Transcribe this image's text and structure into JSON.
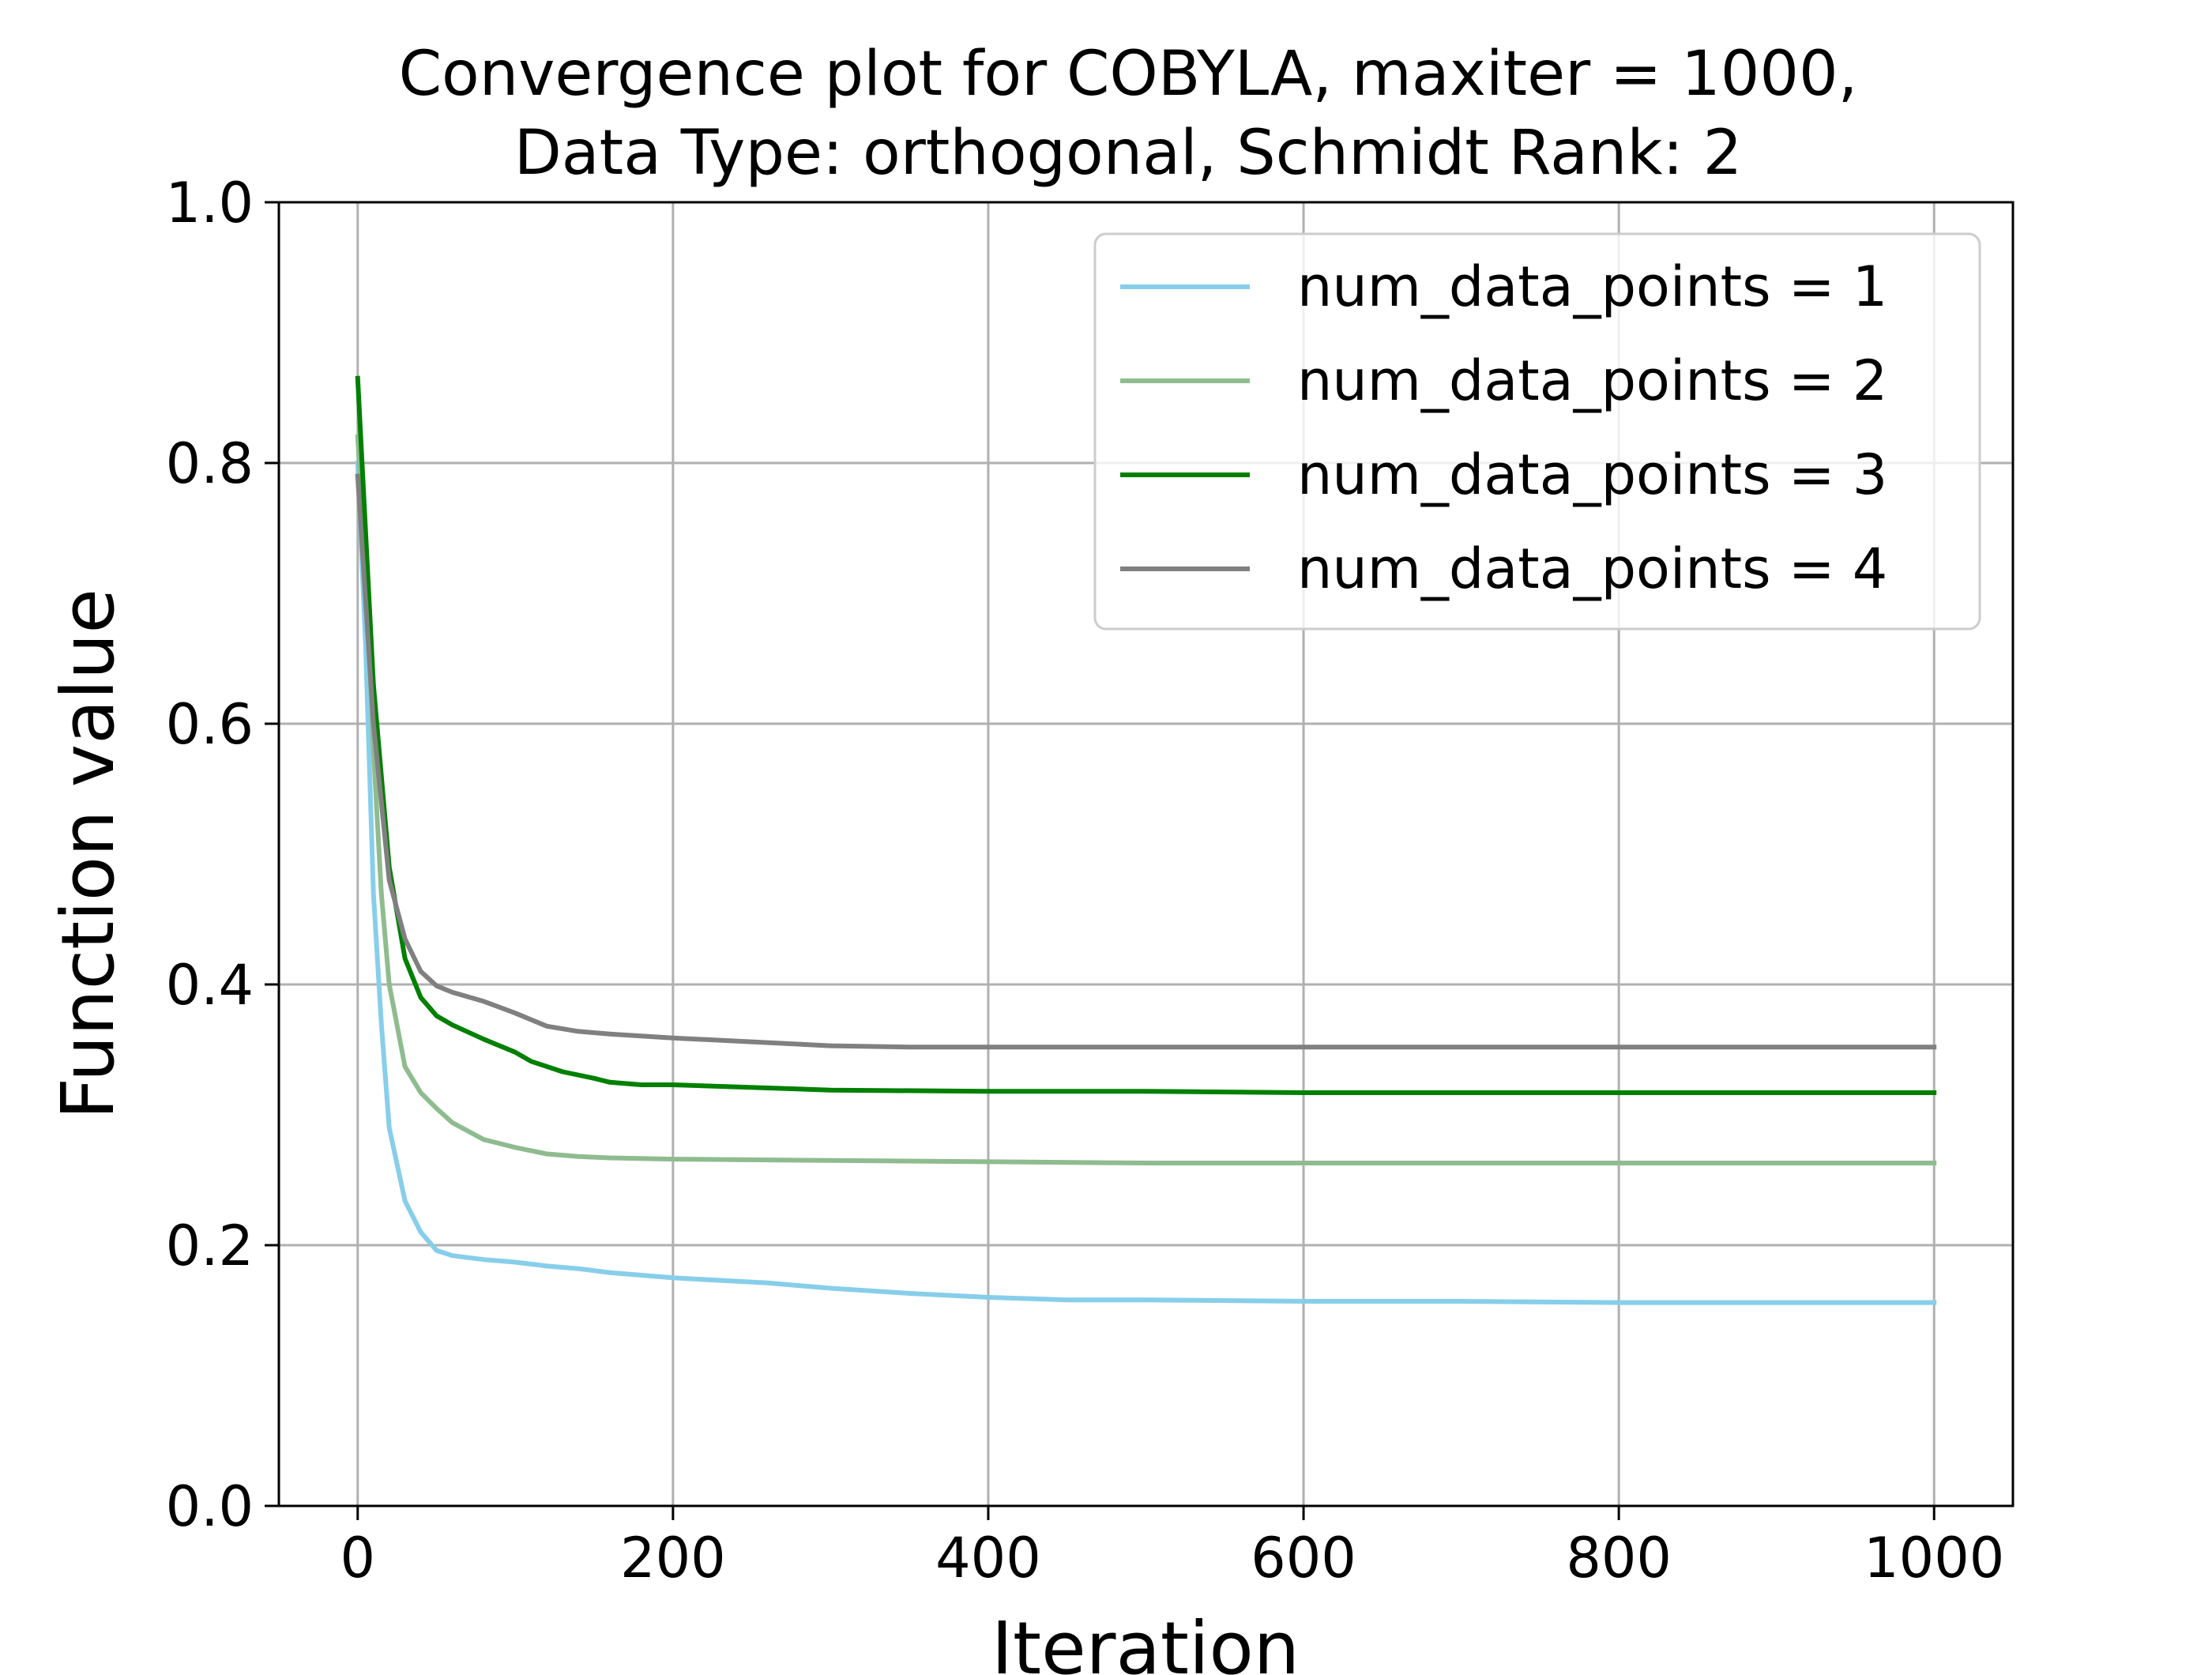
{
  "chart_data": {
    "type": "line",
    "title_line1": "Convergence plot for COBYLA, maxiter = 1000,",
    "title_line2": "Data Type: orthogonal, Schmidt Rank: 2",
    "xlabel": "Iteration",
    "ylabel": "Function value",
    "xlim": [
      -50,
      1050
    ],
    "ylim": [
      0,
      1
    ],
    "xticks": [
      0,
      200,
      400,
      600,
      800,
      1000
    ],
    "xtick_labels": [
      "0",
      "200",
      "400",
      "600",
      "800",
      "1000"
    ],
    "yticks": [
      0,
      0.2,
      0.4,
      0.6,
      0.8,
      1.0
    ],
    "ytick_labels": [
      "0.0",
      "0.2",
      "0.4",
      "0.6",
      "0.8",
      "1.0"
    ],
    "grid": true,
    "legend_position": "top-right",
    "series": [
      {
        "name": "num_data_points = 1",
        "color": "#87ceeb",
        "x": [
          0,
          5,
          10,
          15,
          20,
          30,
          40,
          50,
          60,
          80,
          100,
          120,
          140,
          160,
          200,
          260,
          300,
          350,
          400,
          450,
          500,
          600,
          700,
          800,
          900,
          1000
        ],
        "y": [
          0.8,
          0.66,
          0.47,
          0.37,
          0.29,
          0.234,
          0.21,
          0.196,
          0.192,
          0.189,
          0.187,
          0.184,
          0.182,
          0.179,
          0.175,
          0.171,
          0.167,
          0.163,
          0.16,
          0.158,
          0.158,
          0.157,
          0.157,
          0.156,
          0.156,
          0.156
        ]
      },
      {
        "name": "num_data_points = 2",
        "color": "#8fbc8f",
        "x": [
          0,
          5,
          10,
          15,
          20,
          30,
          40,
          50,
          60,
          80,
          100,
          120,
          140,
          160,
          200,
          300,
          400,
          500,
          600,
          700,
          800,
          900,
          1000
        ],
        "y": [
          0.82,
          0.72,
          0.58,
          0.47,
          0.4,
          0.337,
          0.317,
          0.305,
          0.294,
          0.281,
          0.275,
          0.27,
          0.268,
          0.267,
          0.266,
          0.265,
          0.264,
          0.263,
          0.263,
          0.263,
          0.263,
          0.263,
          0.263
        ]
      },
      {
        "name": "num_data_points = 3",
        "color": "#008000",
        "x": [
          0,
          10,
          20,
          30,
          40,
          50,
          60,
          80,
          90,
          100,
          110,
          130,
          150,
          160,
          180,
          200,
          300,
          400,
          500,
          600,
          700,
          800,
          900,
          1000
        ],
        "y": [
          0.865,
          0.63,
          0.49,
          0.42,
          0.39,
          0.376,
          0.369,
          0.358,
          0.353,
          0.348,
          0.341,
          0.333,
          0.328,
          0.325,
          0.323,
          0.323,
          0.319,
          0.318,
          0.318,
          0.317,
          0.317,
          0.317,
          0.317,
          0.317
        ]
      },
      {
        "name": "num_data_points = 4",
        "color": "#808080",
        "x": [
          0,
          10,
          20,
          30,
          40,
          50,
          60,
          80,
          100,
          120,
          140,
          160,
          200,
          250,
          300,
          350,
          400,
          500,
          600,
          700,
          800,
          900,
          1000
        ],
        "y": [
          0.79,
          0.6,
          0.48,
          0.435,
          0.41,
          0.399,
          0.394,
          0.387,
          0.378,
          0.368,
          0.364,
          0.362,
          0.359,
          0.356,
          0.353,
          0.352,
          0.352,
          0.352,
          0.352,
          0.352,
          0.352,
          0.352,
          0.352
        ]
      }
    ]
  }
}
